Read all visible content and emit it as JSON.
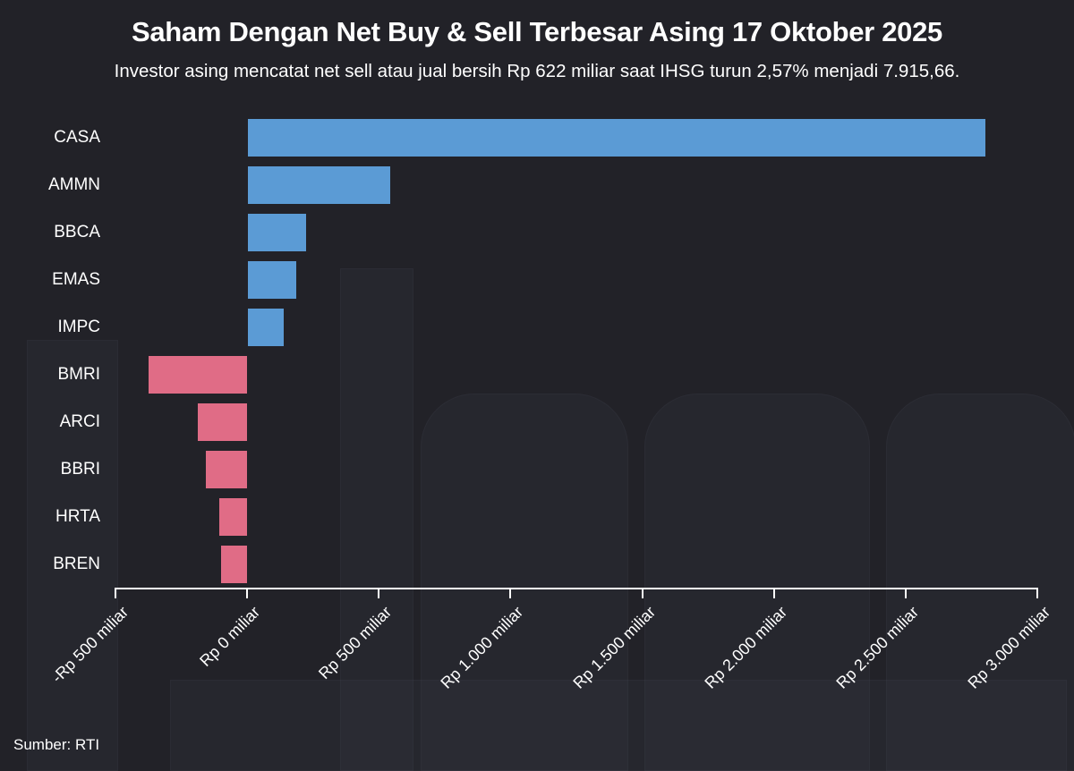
{
  "header": {
    "title": "Saham Dengan Net Buy & Sell Terbesar Asing 17 Oktober 2025",
    "subtitle": "Investor asing mencatat net sell atau jual bersih Rp 622 miliar saat IHSG turun 2,57% menjadi 7.915,66."
  },
  "footer": {
    "source": "Sumber: RTI"
  },
  "colors": {
    "positive": "#5b9bd5",
    "negative": "#e06c86",
    "background": "#222228"
  },
  "chart_data": {
    "type": "bar",
    "orientation": "horizontal",
    "title": "Saham Dengan Net Buy & Sell Terbesar Asing 17 Oktober 2025",
    "subtitle": "Investor asing mencatat net sell atau jual bersih Rp 622 miliar saat IHSG turun 2,57% menjadi 7.915,66.",
    "categories": [
      "CASA",
      "AMMN",
      "BBCA",
      "EMAS",
      "IMPC",
      "BMRI",
      "ARCI",
      "BBRI",
      "HRTA",
      "BREN"
    ],
    "values": [
      2800,
      540,
      220,
      183,
      136,
      -374,
      -187,
      -157,
      -105,
      -99
    ],
    "unit": "Rp miliar",
    "xlabel": "",
    "ylabel": "",
    "xlim": [
      -500,
      3000
    ],
    "xticks": [
      "-Rp 500 miliar",
      "Rp 0 miliar",
      "Rp 500 miliar",
      "Rp 1.000 miliar",
      "Rp 1.500 miliar",
      "Rp 2.000 miliar",
      "Rp 2.500 miliar",
      "Rp 3.000 miliar"
    ],
    "xtick_values": [
      -500,
      0,
      500,
      1000,
      1500,
      2000,
      2500,
      3000
    ],
    "grid": false,
    "legend": null,
    "source": "Sumber: RTI"
  }
}
